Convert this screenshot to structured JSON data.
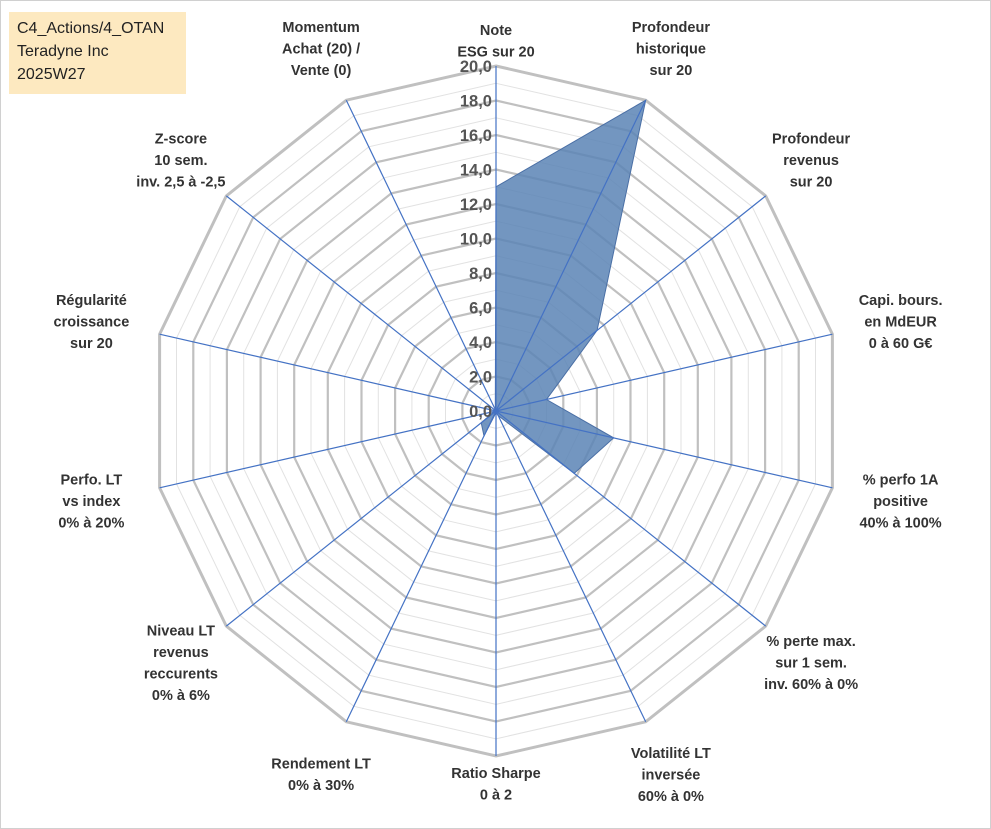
{
  "info_box": {
    "line1": "C4_Actions/4_OTAN",
    "line2": "Teradyne Inc",
    "line3": "2025W27"
  },
  "colors": {
    "grid": "#c0c0c0",
    "spoke": "#4472c4",
    "fill": "#5b84b5",
    "stroke": "#4a6fa5",
    "info_bg": "#fde9c0"
  },
  "chart_data": {
    "type": "radar",
    "title": "",
    "rmin": 0,
    "rmax": 20,
    "tick_step": 2,
    "tick_labels": [
      "0,0",
      "2,0",
      "4,0",
      "6,0",
      "8,0",
      "10,0",
      "12,0",
      "14,0",
      "16,0",
      "18,0",
      "20,0"
    ],
    "minor_rings": true,
    "axes": [
      {
        "label": [
          "Note",
          "ESG sur 20"
        ]
      },
      {
        "label": [
          "Profondeur",
          "historique",
          "sur 20"
        ]
      },
      {
        "label": [
          "Profondeur",
          "revenus",
          "sur 20"
        ]
      },
      {
        "label": [
          "Capi. bours.",
          "en MdEUR",
          "0 à 60 G€"
        ]
      },
      {
        "label": [
          "% perfo 1A",
          "positive",
          "40% à 100%"
        ]
      },
      {
        "label": [
          "% perte max.",
          "sur 1 sem.",
          "inv. 60% à 0%"
        ]
      },
      {
        "label": [
          "Volatilité LT",
          "inversée",
          "60% à 0%"
        ]
      },
      {
        "label": [
          "Ratio Sharpe",
          "0 à 2"
        ]
      },
      {
        "label": [
          "Rendement LT",
          "0% à 30%"
        ]
      },
      {
        "label": [
          "Niveau LT",
          "revenus",
          "reccurents",
          "0% à 6%"
        ]
      },
      {
        "label": [
          "Perfo. LT",
          "vs index",
          "0% à 20%"
        ]
      },
      {
        "label": [
          "Régularité",
          "croissance",
          "sur 20"
        ]
      },
      {
        "label": [
          "Z-score",
          "10 sem.",
          "inv. 2,5 à -2,5"
        ]
      },
      {
        "label": [
          "Momentum",
          "Achat (20) /",
          "Vente (0)"
        ]
      }
    ],
    "series": [
      {
        "values": [
          13.0,
          20.0,
          7.5,
          3.0,
          7.0,
          5.8,
          0.3,
          0.1,
          1.6,
          1.1,
          0.1,
          0.1,
          0.1,
          0.1
        ]
      }
    ]
  }
}
